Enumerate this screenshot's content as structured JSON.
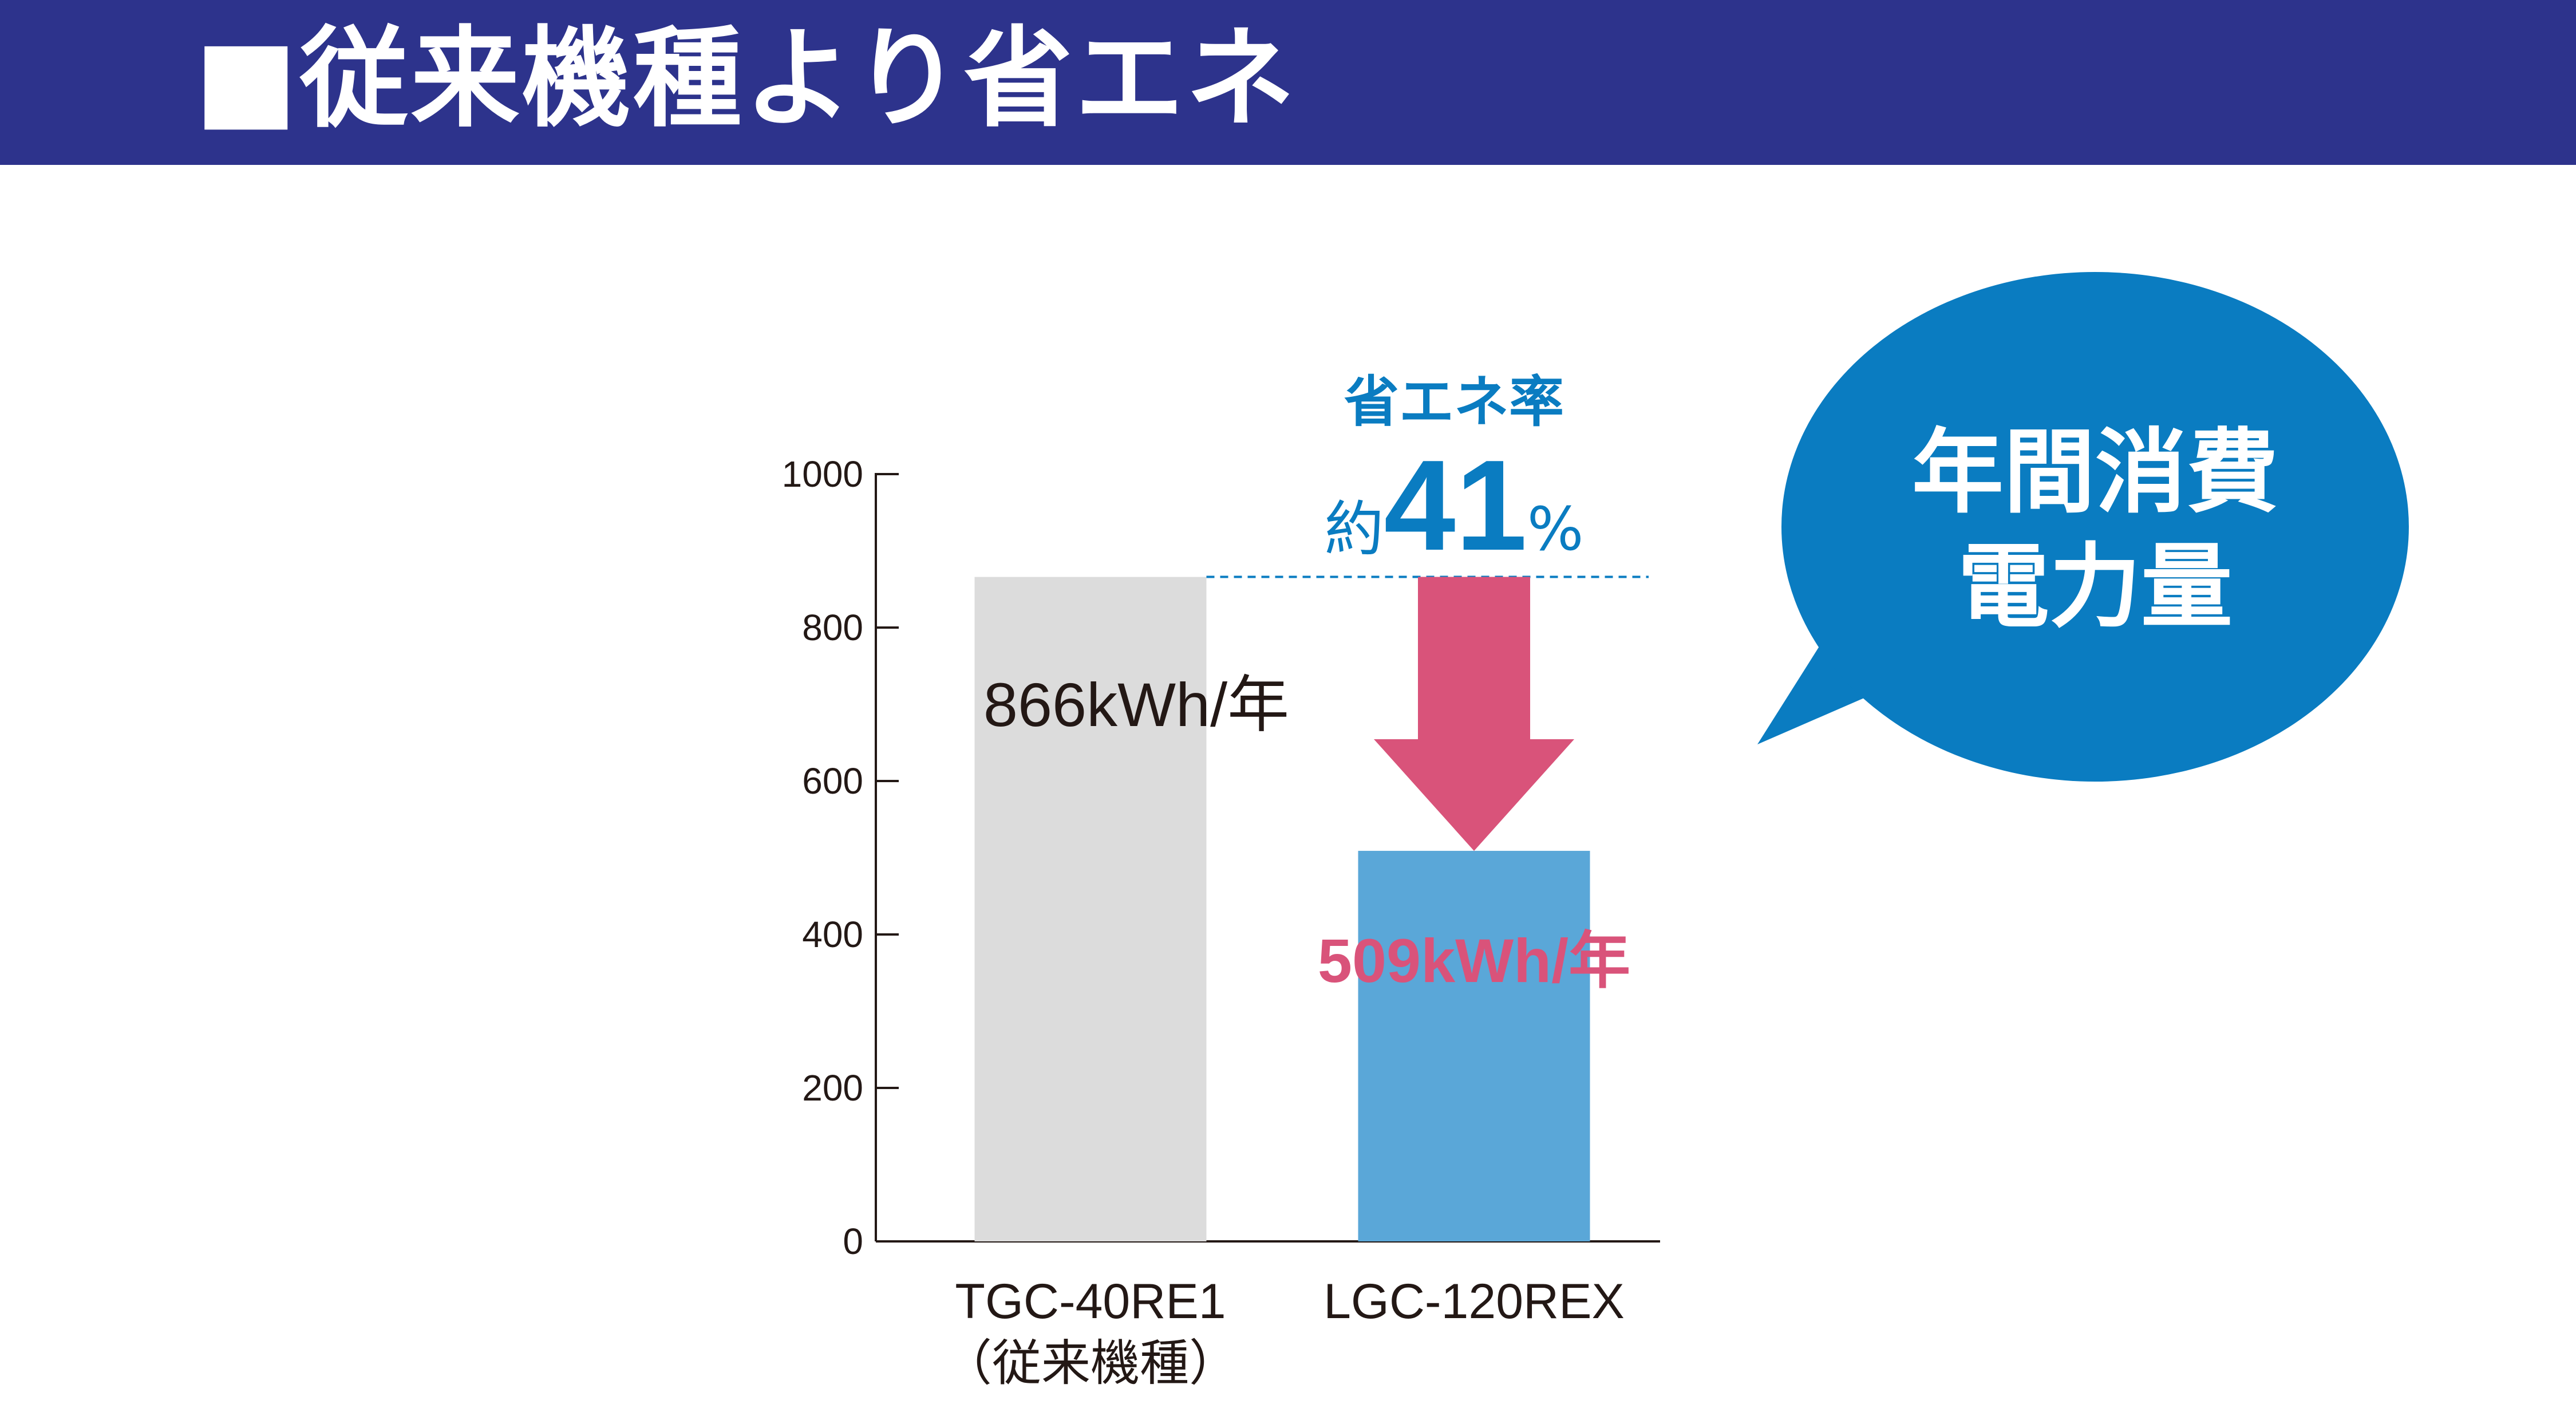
{
  "header": {
    "title": "■従来機種より省エネ"
  },
  "colors": {
    "header_bg": "#2d338c",
    "bar_old": "#dcdcdc",
    "bar_new": "#5aa7d8",
    "arrow": "#d9537a",
    "accent_blue": "#0a7cc1",
    "bubble": "#0a7cc1"
  },
  "bubble": {
    "line1": "年間消費",
    "line2": "電力量"
  },
  "saving": {
    "label": "省エネ率",
    "prefix": "約",
    "value": "41",
    "unit": "%"
  },
  "chart_data": {
    "type": "bar",
    "categories": [
      "TGC-40RE1",
      "LGC-120REX"
    ],
    "category_sublabels": [
      "（従来機種）",
      ""
    ],
    "values": [
      866,
      509
    ],
    "value_labels": [
      "866kWh/年",
      "509kWh/年"
    ],
    "ylim": [
      0,
      1000
    ],
    "yticks": [
      0,
      200,
      400,
      600,
      800,
      1000
    ],
    "title": "",
    "xlabel": "",
    "ylabel": "",
    "grid": false
  }
}
